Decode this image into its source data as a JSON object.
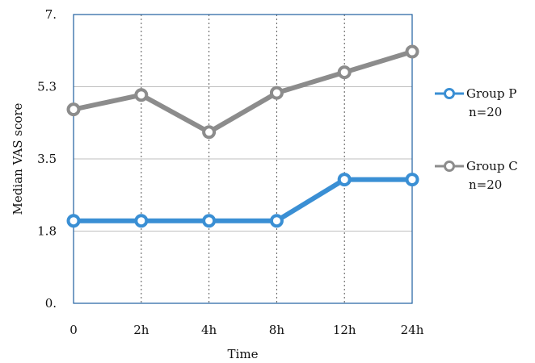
{
  "chart_data": {
    "type": "line",
    "title": "",
    "xlabel": "Time",
    "ylabel": "Median VAS score",
    "categories": [
      "0",
      "2h",
      "4h",
      "8h",
      "12h",
      "24h"
    ],
    "yticks": [
      "0.",
      "1.8",
      "3.5",
      "5.3",
      "7."
    ],
    "ylim": [
      0,
      7
    ],
    "grid": {
      "horizontal": true,
      "vertical": true,
      "vertical_style": "dotted"
    },
    "legend_position": "right",
    "series": [
      {
        "name": "Group P",
        "sublabel": "n=20",
        "color": "#3a8fd4",
        "values": [
          2.0,
          2.0,
          2.0,
          2.0,
          3.0,
          3.0
        ]
      },
      {
        "name": "Group C",
        "sublabel": "n=20",
        "color": "#8c8c8c",
        "values": [
          4.7,
          5.05,
          4.15,
          5.1,
          5.6,
          6.1
        ]
      }
    ]
  }
}
